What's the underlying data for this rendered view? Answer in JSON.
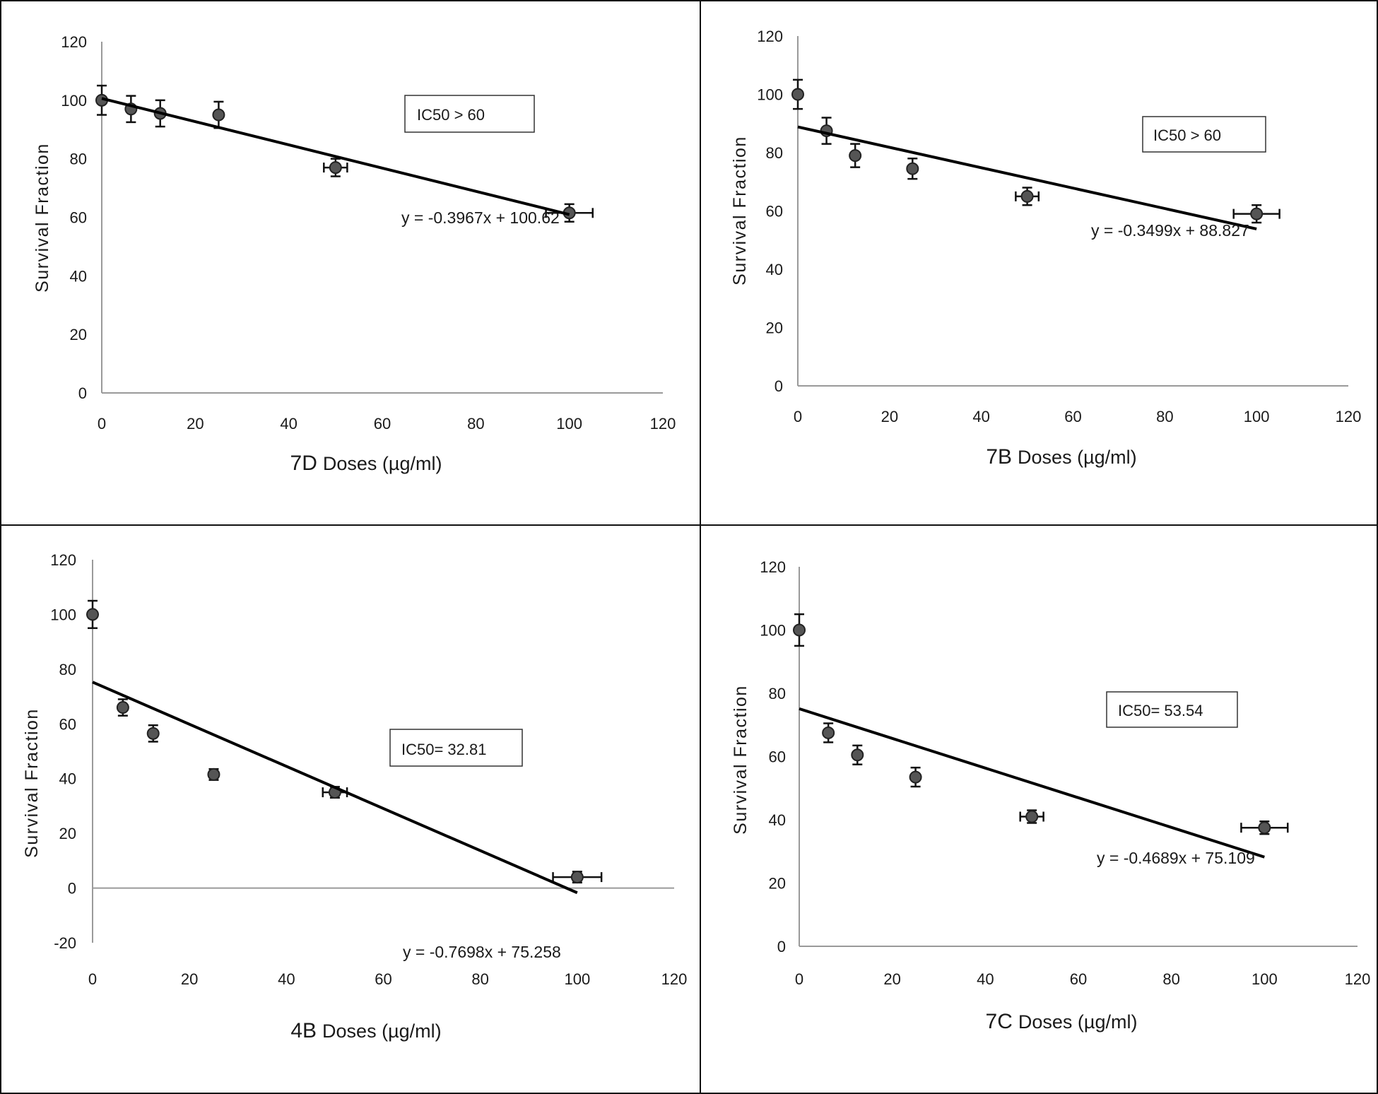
{
  "chart_data": [
    {
      "type": "scatter",
      "compound": "7D",
      "xlabel_rest": "Doses (µg/ml)",
      "ylabel": "Survival Fraction",
      "xlim": [
        0,
        120
      ],
      "ylim": [
        0,
        120
      ],
      "xticks": [
        0,
        20,
        40,
        60,
        80,
        100,
        120
      ],
      "yticks": [
        0,
        20,
        40,
        60,
        80,
        100,
        120
      ],
      "x": [
        0,
        6.25,
        12.5,
        25,
        50,
        100
      ],
      "y": [
        100,
        97,
        95.5,
        95,
        77,
        61.5
      ],
      "yerr": [
        5,
        4.5,
        4.5,
        4.5,
        3,
        3
      ],
      "xerr": [
        0,
        0,
        0,
        0,
        2.5,
        5
      ],
      "trendline": {
        "slope": -0.3967,
        "intercept": 100.62,
        "x_range": [
          0,
          100
        ],
        "equation": "y = -0.3967x + 100.62"
      },
      "ic50": "IC50 > 60"
    },
    {
      "type": "scatter",
      "compound": "7B",
      "xlabel_rest": "Doses (µg/ml)",
      "ylabel": "Survival Fraction",
      "xlim": [
        0,
        120
      ],
      "ylim": [
        0,
        120
      ],
      "xticks": [
        0,
        20,
        40,
        60,
        80,
        100,
        120
      ],
      "yticks": [
        0,
        20,
        40,
        60,
        80,
        100,
        120
      ],
      "x": [
        0,
        6.25,
        12.5,
        25,
        50,
        100
      ],
      "y": [
        100,
        87.5,
        79,
        74.5,
        65,
        59
      ],
      "yerr": [
        5,
        4.5,
        4,
        3.5,
        3,
        3
      ],
      "xerr": [
        0,
        0,
        0,
        0,
        2.5,
        5
      ],
      "trendline": {
        "slope": -0.3499,
        "intercept": 88.827,
        "x_range": [
          0,
          100
        ],
        "equation": "y = -0.3499x + 88.827"
      },
      "ic50": "IC50 > 60"
    },
    {
      "type": "scatter",
      "compound": "4B",
      "xlabel_rest": "Doses (µg/ml)",
      "ylabel": "Survival Fraction",
      "xlim": [
        0,
        120
      ],
      "ylim": [
        -20,
        120
      ],
      "xticks": [
        0,
        20,
        40,
        60,
        80,
        100,
        120
      ],
      "yticks": [
        -20,
        0,
        20,
        40,
        60,
        80,
        100,
        120
      ],
      "x": [
        0,
        6.25,
        12.5,
        25,
        50,
        100
      ],
      "y": [
        100,
        66,
        56.5,
        41.5,
        35,
        4
      ],
      "yerr": [
        5,
        3,
        3,
        2,
        2,
        2
      ],
      "xerr": [
        0,
        0,
        0,
        0,
        2.5,
        5
      ],
      "trendline": {
        "slope": -0.7698,
        "intercept": 75.258,
        "x_range": [
          0,
          100
        ],
        "equation": "y = -0.7698x + 75.258"
      },
      "ic50": "IC50= 32.81"
    },
    {
      "type": "scatter",
      "compound": "7C",
      "xlabel_rest": "Doses (µg/ml)",
      "ylabel": "Survival Fraction",
      "xlim": [
        0,
        120
      ],
      "ylim": [
        0,
        120
      ],
      "xticks": [
        0,
        20,
        40,
        60,
        80,
        100,
        120
      ],
      "yticks": [
        0,
        20,
        40,
        60,
        80,
        100,
        120
      ],
      "x": [
        0,
        6.25,
        12.5,
        25,
        50,
        100
      ],
      "y": [
        100,
        67.5,
        60.5,
        53.5,
        41,
        37.5
      ],
      "yerr": [
        5,
        3,
        3,
        3,
        2,
        2
      ],
      "xerr": [
        0,
        0,
        0,
        0,
        2.5,
        5
      ],
      "trendline": {
        "slope": -0.4689,
        "intercept": 75.109,
        "x_range": [
          0,
          100
        ],
        "equation": "y = -0.4689x + 75.109"
      },
      "ic50": "IC50= 53.54"
    }
  ]
}
